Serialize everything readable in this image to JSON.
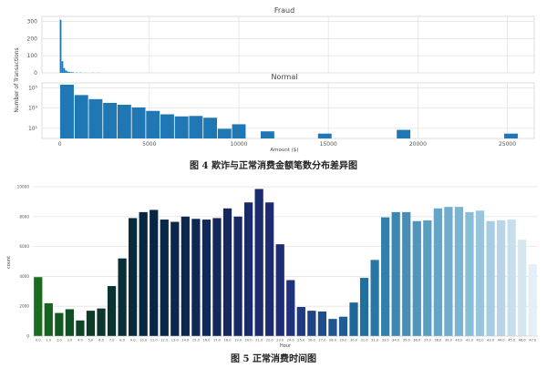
{
  "figure4": {
    "caption": "图 4  欺诈与正常消费金额笔数分布差异图",
    "ylabel": "Number of Transactions",
    "xlabel": "Amount ($)",
    "x_ticks": [
      "0",
      "5000",
      "10000",
      "15000",
      "20000",
      "25000"
    ],
    "fraud": {
      "subtitle": "Fraud",
      "y_ticks": [
        "0",
        "100",
        "200",
        "300"
      ]
    },
    "normal": {
      "subtitle": "Normal",
      "y_ticks": [
        "10⁵",
        "10³",
        "10¹"
      ]
    }
  },
  "figure5": {
    "caption": "图 5  正常消费时间图",
    "ylabel": "count",
    "xlabel": "Hour",
    "y_ticks": [
      "0",
      "2000",
      "4000",
      "6000",
      "8000",
      "10000"
    ]
  },
  "chart_data": [
    {
      "type": "bar",
      "title": "Fraud",
      "xlabel": "",
      "ylabel": "Number of Transactions",
      "xlim": [
        -1000,
        26500
      ],
      "ylim": [
        0,
        330
      ],
      "bin_width": 100,
      "bins": [
        {
          "x": 0,
          "value": 310
        },
        {
          "x": 100,
          "value": 68
        },
        {
          "x": 200,
          "value": 28
        },
        {
          "x": 300,
          "value": 14
        },
        {
          "x": 400,
          "value": 8
        },
        {
          "x": 500,
          "value": 5
        },
        {
          "x": 600,
          "value": 4
        },
        {
          "x": 700,
          "value": 3
        },
        {
          "x": 900,
          "value": 2
        },
        {
          "x": 1100,
          "value": 2
        },
        {
          "x": 1400,
          "value": 1
        },
        {
          "x": 1800,
          "value": 1
        },
        {
          "x": 2100,
          "value": 1
        }
      ],
      "grid": true
    },
    {
      "type": "bar",
      "title": "Normal",
      "xlabel": "Amount ($)",
      "ylabel": "Number of Transactions",
      "xlim": [
        -1000,
        26500
      ],
      "log_scale": true,
      "ylim": [
        1,
        300000
      ],
      "bin_width": 800,
      "bins": [
        {
          "x": 0,
          "value": 200000
        },
        {
          "x": 800,
          "value": 19000
        },
        {
          "x": 1600,
          "value": 7500
        },
        {
          "x": 2400,
          "value": 3200
        },
        {
          "x": 3200,
          "value": 2100
        },
        {
          "x": 4000,
          "value": 1150
        },
        {
          "x": 4800,
          "value": 520
        },
        {
          "x": 5600,
          "value": 240
        },
        {
          "x": 6400,
          "value": 150
        },
        {
          "x": 7200,
          "value": 165
        },
        {
          "x": 8000,
          "value": 110
        },
        {
          "x": 8800,
          "value": 9
        },
        {
          "x": 9600,
          "value": 25
        },
        {
          "x": 11200,
          "value": 5
        },
        {
          "x": 14400,
          "value": 3
        },
        {
          "x": 18800,
          "value": 7
        },
        {
          "x": 24800,
          "value": 3
        }
      ],
      "grid": true
    },
    {
      "type": "bar",
      "title": "",
      "xlabel": "Hour",
      "ylabel": "count",
      "ylim": [
        0,
        10000
      ],
      "categories": [
        "0.0",
        "1.0",
        "2.0",
        "3.0",
        "4.0",
        "5.0",
        "6.0",
        "7.0",
        "8.0",
        "9.0",
        "10.0",
        "11.0",
        "12.0",
        "13.0",
        "14.0",
        "15.0",
        "16.0",
        "17.0",
        "18.0",
        "19.0",
        "20.0",
        "21.0",
        "22.0",
        "23.0",
        "24.0",
        "25.0",
        "26.0",
        "27.0",
        "28.0",
        "29.0",
        "30.0",
        "31.0",
        "32.0",
        "33.0",
        "34.0",
        "35.0",
        "36.0",
        "37.0",
        "38.0",
        "39.0",
        "40.0",
        "41.0",
        "42.0",
        "43.0",
        "44.0",
        "45.0",
        "46.0",
        "47.0"
      ],
      "values": [
        3950,
        2200,
        1550,
        1800,
        1050,
        1700,
        1850,
        3350,
        5200,
        7900,
        8300,
        8450,
        7800,
        7650,
        8000,
        7850,
        7800,
        7900,
        8550,
        8000,
        8950,
        9850,
        8950,
        6150,
        3750,
        1950,
        1700,
        1650,
        1150,
        1300,
        2250,
        3900,
        5100,
        7950,
        8300,
        8300,
        7700,
        7750,
        8550,
        8650,
        8650,
        8300,
        8400,
        7700,
        7750,
        7800,
        6450,
        4800
      ],
      "palette": "ocean",
      "grid": true
    }
  ]
}
